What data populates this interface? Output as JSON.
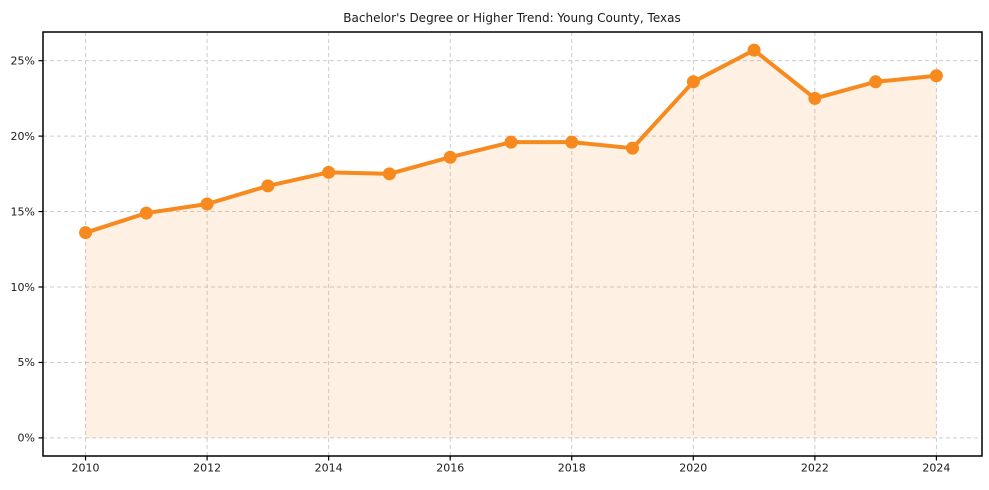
{
  "chart_data": {
    "type": "line",
    "title": "Bachelor's Degree or Higher Trend: Young County, Texas",
    "xlabel": "",
    "ylabel": "",
    "x": [
      2010,
      2011,
      2012,
      2013,
      2014,
      2015,
      2016,
      2017,
      2018,
      2019,
      2020,
      2021,
      2022,
      2023,
      2024
    ],
    "values": [
      13.6,
      14.9,
      15.5,
      16.7,
      17.6,
      17.5,
      18.6,
      19.6,
      19.6,
      19.2,
      23.6,
      25.7,
      22.5,
      23.6,
      24.0
    ],
    "x_ticks": {
      "values": [
        2010,
        2012,
        2014,
        2016,
        2018,
        2020,
        2022,
        2024
      ],
      "labels": [
        "2010",
        "2012",
        "2014",
        "2016",
        "2018",
        "2020",
        "2022",
        "2024"
      ]
    },
    "y_ticks": {
      "values": [
        0,
        5,
        10,
        15,
        20,
        25
      ],
      "labels": [
        "0%",
        "5%",
        "10%",
        "15%",
        "20%",
        "25%"
      ]
    },
    "xlim": [
      2009.3,
      2024.75
    ],
    "ylim": [
      -1.2,
      26.9
    ],
    "grid": true,
    "legend_position": "none",
    "marker": "circle",
    "area_baseline": 0,
    "colors": {
      "line": "#f68a1e",
      "marker": "#f68a1e",
      "area_fill": "#f68a1e",
      "area_fill_opacity": 0.13,
      "gridline": "#cccccc",
      "spine": "#000000",
      "tick": "#000000",
      "text": "#1a1a1a",
      "background": "#ffffff"
    }
  }
}
